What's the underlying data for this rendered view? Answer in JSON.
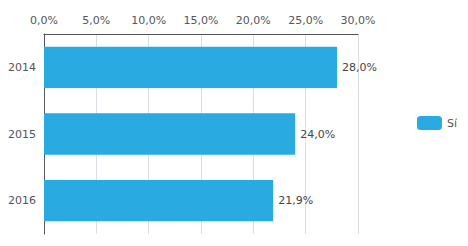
{
  "chart_data": {
    "type": "bar",
    "orientation": "horizontal",
    "categories": [
      "2016",
      "2015",
      "2014"
    ],
    "series": [
      {
        "name": "Sí",
        "color": "#29ABE2",
        "values": [
          21.9,
          24.0,
          28.0
        ],
        "value_labels": [
          "21,9%",
          "24,0%",
          "28,0%"
        ]
      }
    ],
    "data_labels": true,
    "xlim": [
      0,
      30
    ],
    "xticks": [
      {
        "value": 0,
        "label": "0,0%"
      },
      {
        "value": 5,
        "label": "5,0%"
      },
      {
        "value": 10,
        "label": "10,0%"
      },
      {
        "value": 15,
        "label": "15,0%"
      },
      {
        "value": 20,
        "label": "20,0%"
      },
      {
        "value": 25,
        "label": "25,0%"
      },
      {
        "value": 30,
        "label": "30,0%"
      }
    ],
    "grid": true,
    "legend": "right"
  }
}
